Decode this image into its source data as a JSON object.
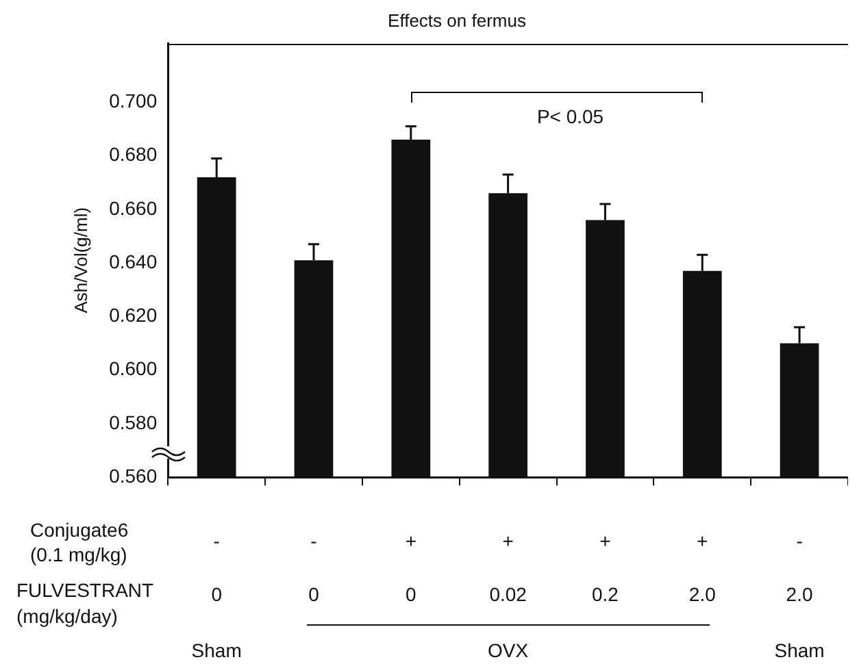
{
  "chart_data": {
    "type": "bar",
    "title": "Effects on fermus",
    "ylabel": "Ash/Vol(g/ml)",
    "categories": [
      null,
      null,
      null,
      null,
      null,
      null,
      null
    ],
    "values": [
      0.672,
      0.641,
      0.686,
      0.666,
      0.656,
      0.637,
      0.61
    ],
    "errors": [
      0.007,
      0.006,
      0.005,
      0.007,
      0.006,
      0.006,
      0.006
    ],
    "color": "#111111",
    "ylim": [
      0.56,
      0.722
    ],
    "yticks": [
      {
        "value": 0.56,
        "label": "0.560"
      },
      {
        "value": 0.58,
        "label": "0.580"
      },
      {
        "value": 0.6,
        "label": "0.600"
      },
      {
        "value": 0.62,
        "label": "0.620"
      },
      {
        "value": 0.64,
        "label": "0.640"
      },
      {
        "value": 0.66,
        "label": "0.660"
      },
      {
        "value": 0.68,
        "label": "0.680"
      },
      {
        "value": 0.7,
        "label": "0.700"
      }
    ],
    "grid": false,
    "legend": false,
    "annotations": [
      "P< 0.05",
      "Conjugate6",
      "(0.1 mg/kg)",
      "FULVESTRANT",
      "(mg/kg/day)",
      "-",
      "-",
      "+",
      "+",
      "+",
      "+",
      "-",
      "0",
      "0",
      "0",
      "0.02",
      "0.2",
      "2.0",
      "2.0",
      "Sham",
      "OVX",
      "Sham"
    ]
  }
}
